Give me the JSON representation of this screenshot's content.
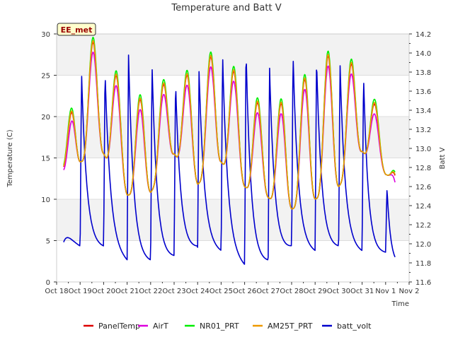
{
  "chart_data": {
    "type": "line",
    "title": "Temperature and Batt V",
    "station_label": "EE_met",
    "xlabel": "Time",
    "ylabel_left": "Temperature (C)",
    "ylabel_right": "Batt V",
    "x_range_days": [
      18,
      33
    ],
    "ylim_left": [
      0,
      30
    ],
    "ylim_right": [
      11.6,
      14.2
    ],
    "xticks": [
      {
        "day": 18,
        "label": "Oct 18"
      },
      {
        "day": 19,
        "label": "Oct 19"
      },
      {
        "day": 20,
        "label": "Oct 20"
      },
      {
        "day": 21,
        "label": "Oct 21"
      },
      {
        "day": 22,
        "label": "Oct 22"
      },
      {
        "day": 23,
        "label": "Oct 23"
      },
      {
        "day": 24,
        "label": "Oct 24"
      },
      {
        "day": 25,
        "label": "Oct 25"
      },
      {
        "day": 26,
        "label": "Oct 26"
      },
      {
        "day": 27,
        "label": "Oct 27"
      },
      {
        "day": 28,
        "label": "Oct 28"
      },
      {
        "day": 29,
        "label": "Oct 29"
      },
      {
        "day": 30,
        "label": "Oct 30"
      },
      {
        "day": 31,
        "label": "Oct 31"
      },
      {
        "day": 32,
        "label": "Nov 1"
      },
      {
        "day": 33,
        "label": "Nov 2"
      }
    ],
    "yticks_left": [
      "0",
      "5",
      "10",
      "15",
      "20",
      "25",
      "30"
    ],
    "yticks_right": [
      "11.6",
      "11.8",
      "12.0",
      "12.2",
      "12.4",
      "12.6",
      "12.8",
      "13.0",
      "13.2",
      "13.4",
      "13.6",
      "13.8",
      "14.0",
      "14.2"
    ],
    "grid": "horizontal bands",
    "legend_position": "bottom",
    "temperature_daily": {
      "days": [
        18.3,
        19,
        20,
        21,
        22,
        23,
        24,
        25,
        26,
        27,
        28,
        29,
        30,
        31,
        32,
        32.4
      ],
      "min": [
        13.8,
        14.5,
        15.5,
        10.5,
        10.8,
        15.5,
        11.8,
        14.5,
        11.5,
        10.2,
        8.8,
        10.0,
        11.5,
        15.8,
        13.0,
        12.6
      ],
      "max": [
        14.2,
        29.0,
        29.0,
        21.5,
        22.5,
        25.0,
        25.0,
        29.0,
        22.5,
        21.0,
        22.0,
        26.5,
        28.0,
        25.0,
        18.5,
        13.0
      ]
    },
    "batt_daily": {
      "days": [
        18.3,
        19,
        20,
        21,
        22,
        23,
        24,
        25,
        26,
        27,
        28,
        29,
        30,
        31,
        32,
        32.4
      ],
      "min": [
        12.0,
        11.95,
        11.95,
        11.8,
        11.8,
        11.85,
        11.95,
        11.9,
        11.75,
        11.8,
        11.95,
        11.9,
        11.95,
        11.9,
        11.9,
        11.85
      ],
      "max": [
        12.05,
        13.8,
        13.8,
        14.0,
        13.9,
        13.7,
        13.8,
        14.0,
        14.05,
        13.85,
        14.0,
        13.95,
        13.9,
        13.85,
        12.7,
        11.9
      ]
    },
    "series": [
      {
        "name": "PanelTemp",
        "color": "#dd0000",
        "axis": "left",
        "offset": 0.0
      },
      {
        "name": "AirT",
        "color": "#dd00dd",
        "axis": "left",
        "offset": -1.2
      },
      {
        "name": "NR01_PRT",
        "color": "#00ee00",
        "axis": "left",
        "offset": 0.6
      },
      {
        "name": "AM25T_PRT",
        "color": "#ee9900",
        "axis": "left",
        "offset": 0.2
      },
      {
        "name": "batt_volt",
        "color": "#0000cc",
        "axis": "right",
        "offset": 0.0
      }
    ]
  }
}
